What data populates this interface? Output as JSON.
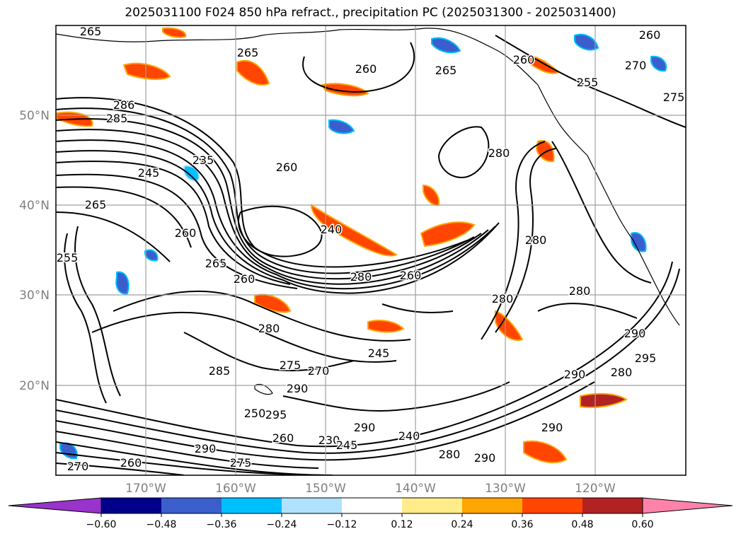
{
  "title": "2025031100 F024 850 hPa refract., precipitation PC (2025031300 - 2025031400)",
  "lat_labels": [
    "50°N",
    "40°N",
    "30°N",
    "20°N"
  ],
  "lon_labels": [
    "170°W",
    "160°W",
    "150°W",
    "140°W",
    "130°W",
    "120°W"
  ],
  "contour_labels": [
    "265",
    "260",
    "265",
    "260",
    "265",
    "260",
    "270",
    "255",
    "275",
    "285",
    "286",
    "235",
    "245",
    "265",
    "255",
    "260",
    "240",
    "260",
    "265",
    "260",
    "280",
    "260",
    "280",
    "280",
    "280",
    "280",
    "280",
    "275",
    "270",
    "290",
    "285",
    "245",
    "250",
    "295",
    "290",
    "260",
    "230",
    "245",
    "240",
    "280",
    "290",
    "290",
    "290",
    "280",
    "295",
    "290",
    "290",
    "260",
    "270",
    "275"
  ],
  "colorbar": {
    "ticks": [
      "−0.60",
      "−0.48",
      "−0.36",
      "−0.24",
      "−0.12",
      "0.12",
      "0.24",
      "0.36",
      "0.48",
      "0.60"
    ],
    "colors": [
      "#9933cc",
      "#00008b",
      "#3a5fcd",
      "#00bfff",
      "#b0e2ff",
      "#ffffff",
      "#ffec8b",
      "#ffa500",
      "#ff4500",
      "#b22222",
      "#ff82ab"
    ]
  }
}
